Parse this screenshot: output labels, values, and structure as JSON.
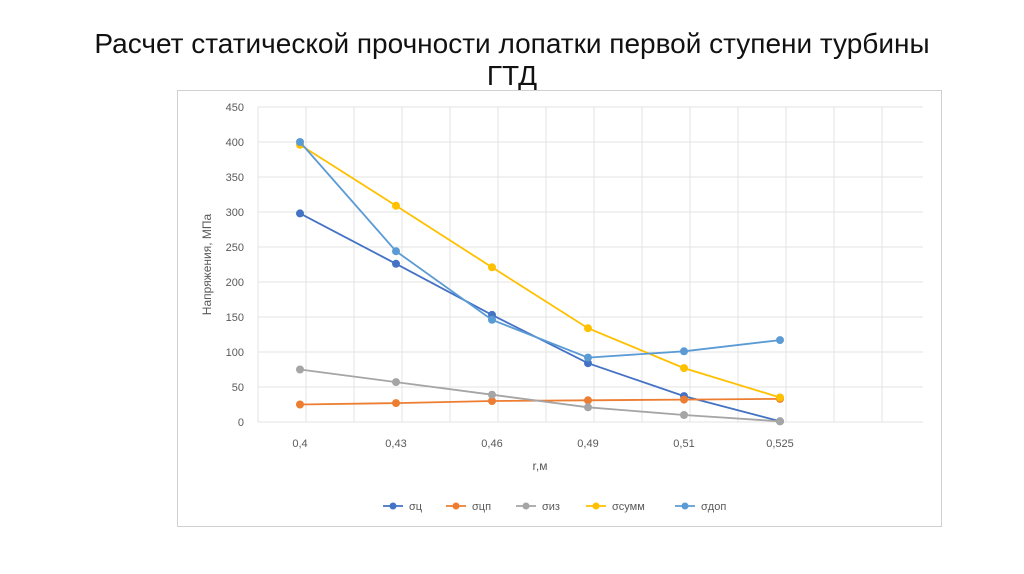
{
  "slide": {
    "title_line1": "Расчет статической прочности лопатки первой ступени турбины",
    "title_line2": "ГТД"
  },
  "chart_data": {
    "type": "line",
    "categories": [
      "0,4",
      "0,43",
      "0,46",
      "0,49",
      "0,51",
      "0,525"
    ],
    "xlabel": "r,м",
    "ylabel": "Напряжения, МПа",
    "ylim": [
      0,
      450
    ],
    "yticks": [
      0,
      50,
      100,
      150,
      200,
      250,
      300,
      350,
      400,
      450
    ],
    "grid": "vertical and horizontal",
    "legend_position": "bottom",
    "series": [
      {
        "name": "σц",
        "color": "#4472c4",
        "values": [
          298,
          226,
          153,
          84,
          37,
          1
        ]
      },
      {
        "name": "σцп",
        "color": "#ed7d31",
        "values": [
          25,
          27,
          30,
          31,
          32,
          33
        ]
      },
      {
        "name": "σиз",
        "color": "#a5a5a5",
        "values": [
          75,
          57,
          39,
          21,
          10,
          1
        ]
      },
      {
        "name": "σсумм",
        "color": "#ffc000",
        "values": [
          396,
          309,
          221,
          134,
          77,
          35
        ]
      },
      {
        "name": "σдоп",
        "color": "#5b9bd5",
        "values": [
          400,
          244,
          146,
          92,
          101,
          117
        ]
      }
    ]
  }
}
